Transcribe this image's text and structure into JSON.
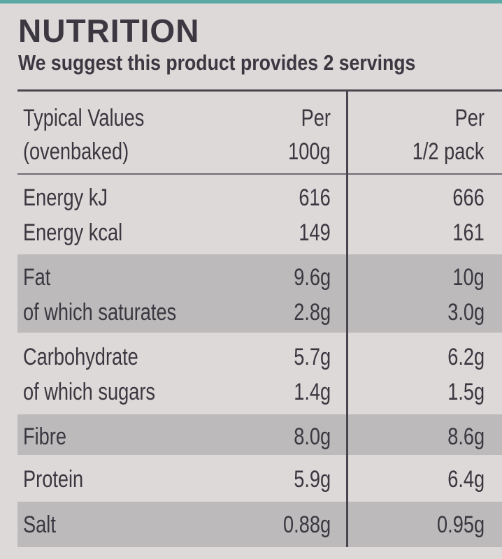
{
  "title": "NUTRITION",
  "subtitle": "We suggest this product provides 2 servings",
  "header": {
    "label_line1": "Typical Values",
    "label_line2": "(ovenbaked)",
    "col1_line1": "Per",
    "col1_line2": "100g",
    "col2_line1": "Per",
    "col2_line2": "1/2 pack"
  },
  "rows": [
    {
      "label": "Energy kJ",
      "per100": "616",
      "perhalf": "666"
    },
    {
      "label": "Energy kcal",
      "per100": "149",
      "perhalf": "161"
    },
    {
      "label": "Fat",
      "per100": "9.6g",
      "perhalf": "10g"
    },
    {
      "label": "of which saturates",
      "per100": "2.8g",
      "perhalf": "3.0g"
    },
    {
      "label": "Carbohydrate",
      "per100": "5.7g",
      "perhalf": "6.2g"
    },
    {
      "label": "of which sugars",
      "per100": "1.4g",
      "perhalf": "1.5g"
    },
    {
      "label": "Fibre",
      "per100": "8.0g",
      "perhalf": "8.6g"
    },
    {
      "label": "Protein",
      "per100": "5.9g",
      "perhalf": "6.4g"
    },
    {
      "label": "Salt",
      "per100": "0.88g",
      "perhalf": "0.95g"
    }
  ],
  "colors": {
    "background": "#ddd9d8",
    "shaded_band": "#bdbabb",
    "text": "#3a3740",
    "accent_strip": "#5aa9a4"
  }
}
